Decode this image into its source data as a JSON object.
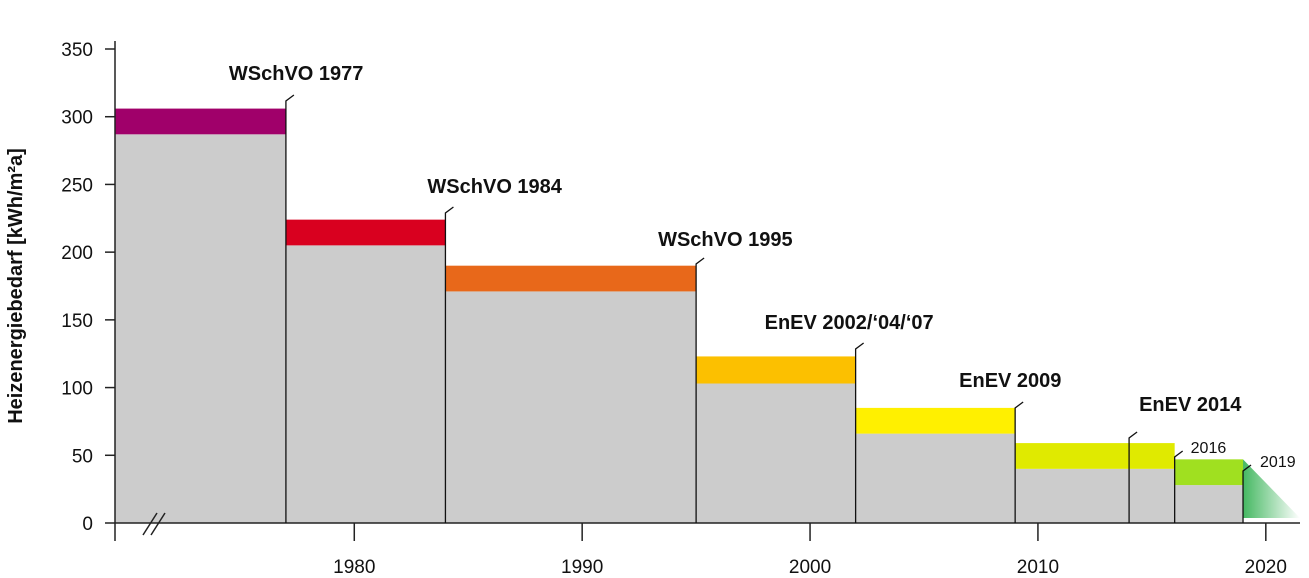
{
  "chart_data": {
    "type": "step-band",
    "y_label": "Heizenergiebedarf [kWh/m²a]",
    "ylim": [
      0,
      350
    ],
    "yticks": [
      0,
      50,
      100,
      150,
      200,
      250,
      300,
      350
    ],
    "xlim": [
      1969.5,
      2021.5
    ],
    "xticks": [
      1980,
      1990,
      2000,
      2010,
      2020
    ],
    "base_color": "#cccccc",
    "segments": [
      {
        "start": null,
        "end": 1977,
        "min": 287,
        "value": 306,
        "color": "#a0006a"
      },
      {
        "start": 1977,
        "end": 1984,
        "min": 205,
        "value": 224,
        "color": "#d9001f"
      },
      {
        "start": 1984,
        "end": 1995,
        "min": 171,
        "value": 190,
        "color": "#e8681a"
      },
      {
        "start": 1995,
        "end": 2002,
        "min": 103,
        "value": 123,
        "color": "#fcc000"
      },
      {
        "start": 2002,
        "end": 2009,
        "min": 66,
        "value": 85,
        "color": "#fff000"
      },
      {
        "start": 2009,
        "end": 2016,
        "min": 40,
        "value": 59,
        "color": "#e0ea00"
      },
      {
        "start": 2016,
        "end": 2019,
        "min": 28,
        "value": 47,
        "color": "#a0e020"
      }
    ],
    "annotations": [
      {
        "text": "WSchVO 1977",
        "x": 1977
      },
      {
        "text": "WSchVO 1984",
        "x": 1984
      },
      {
        "text": "WSchVO 1995",
        "x": 1995
      },
      {
        "text": "EnEV 2002/‘04/‘07",
        "x": 2002
      },
      {
        "text": "EnEV 2009",
        "x": 2009
      },
      {
        "text": "EnEV 2014",
        "x": 2014
      },
      {
        "text": "2016",
        "x": 2016
      },
      {
        "text": "2019",
        "x": 2019
      }
    ]
  }
}
